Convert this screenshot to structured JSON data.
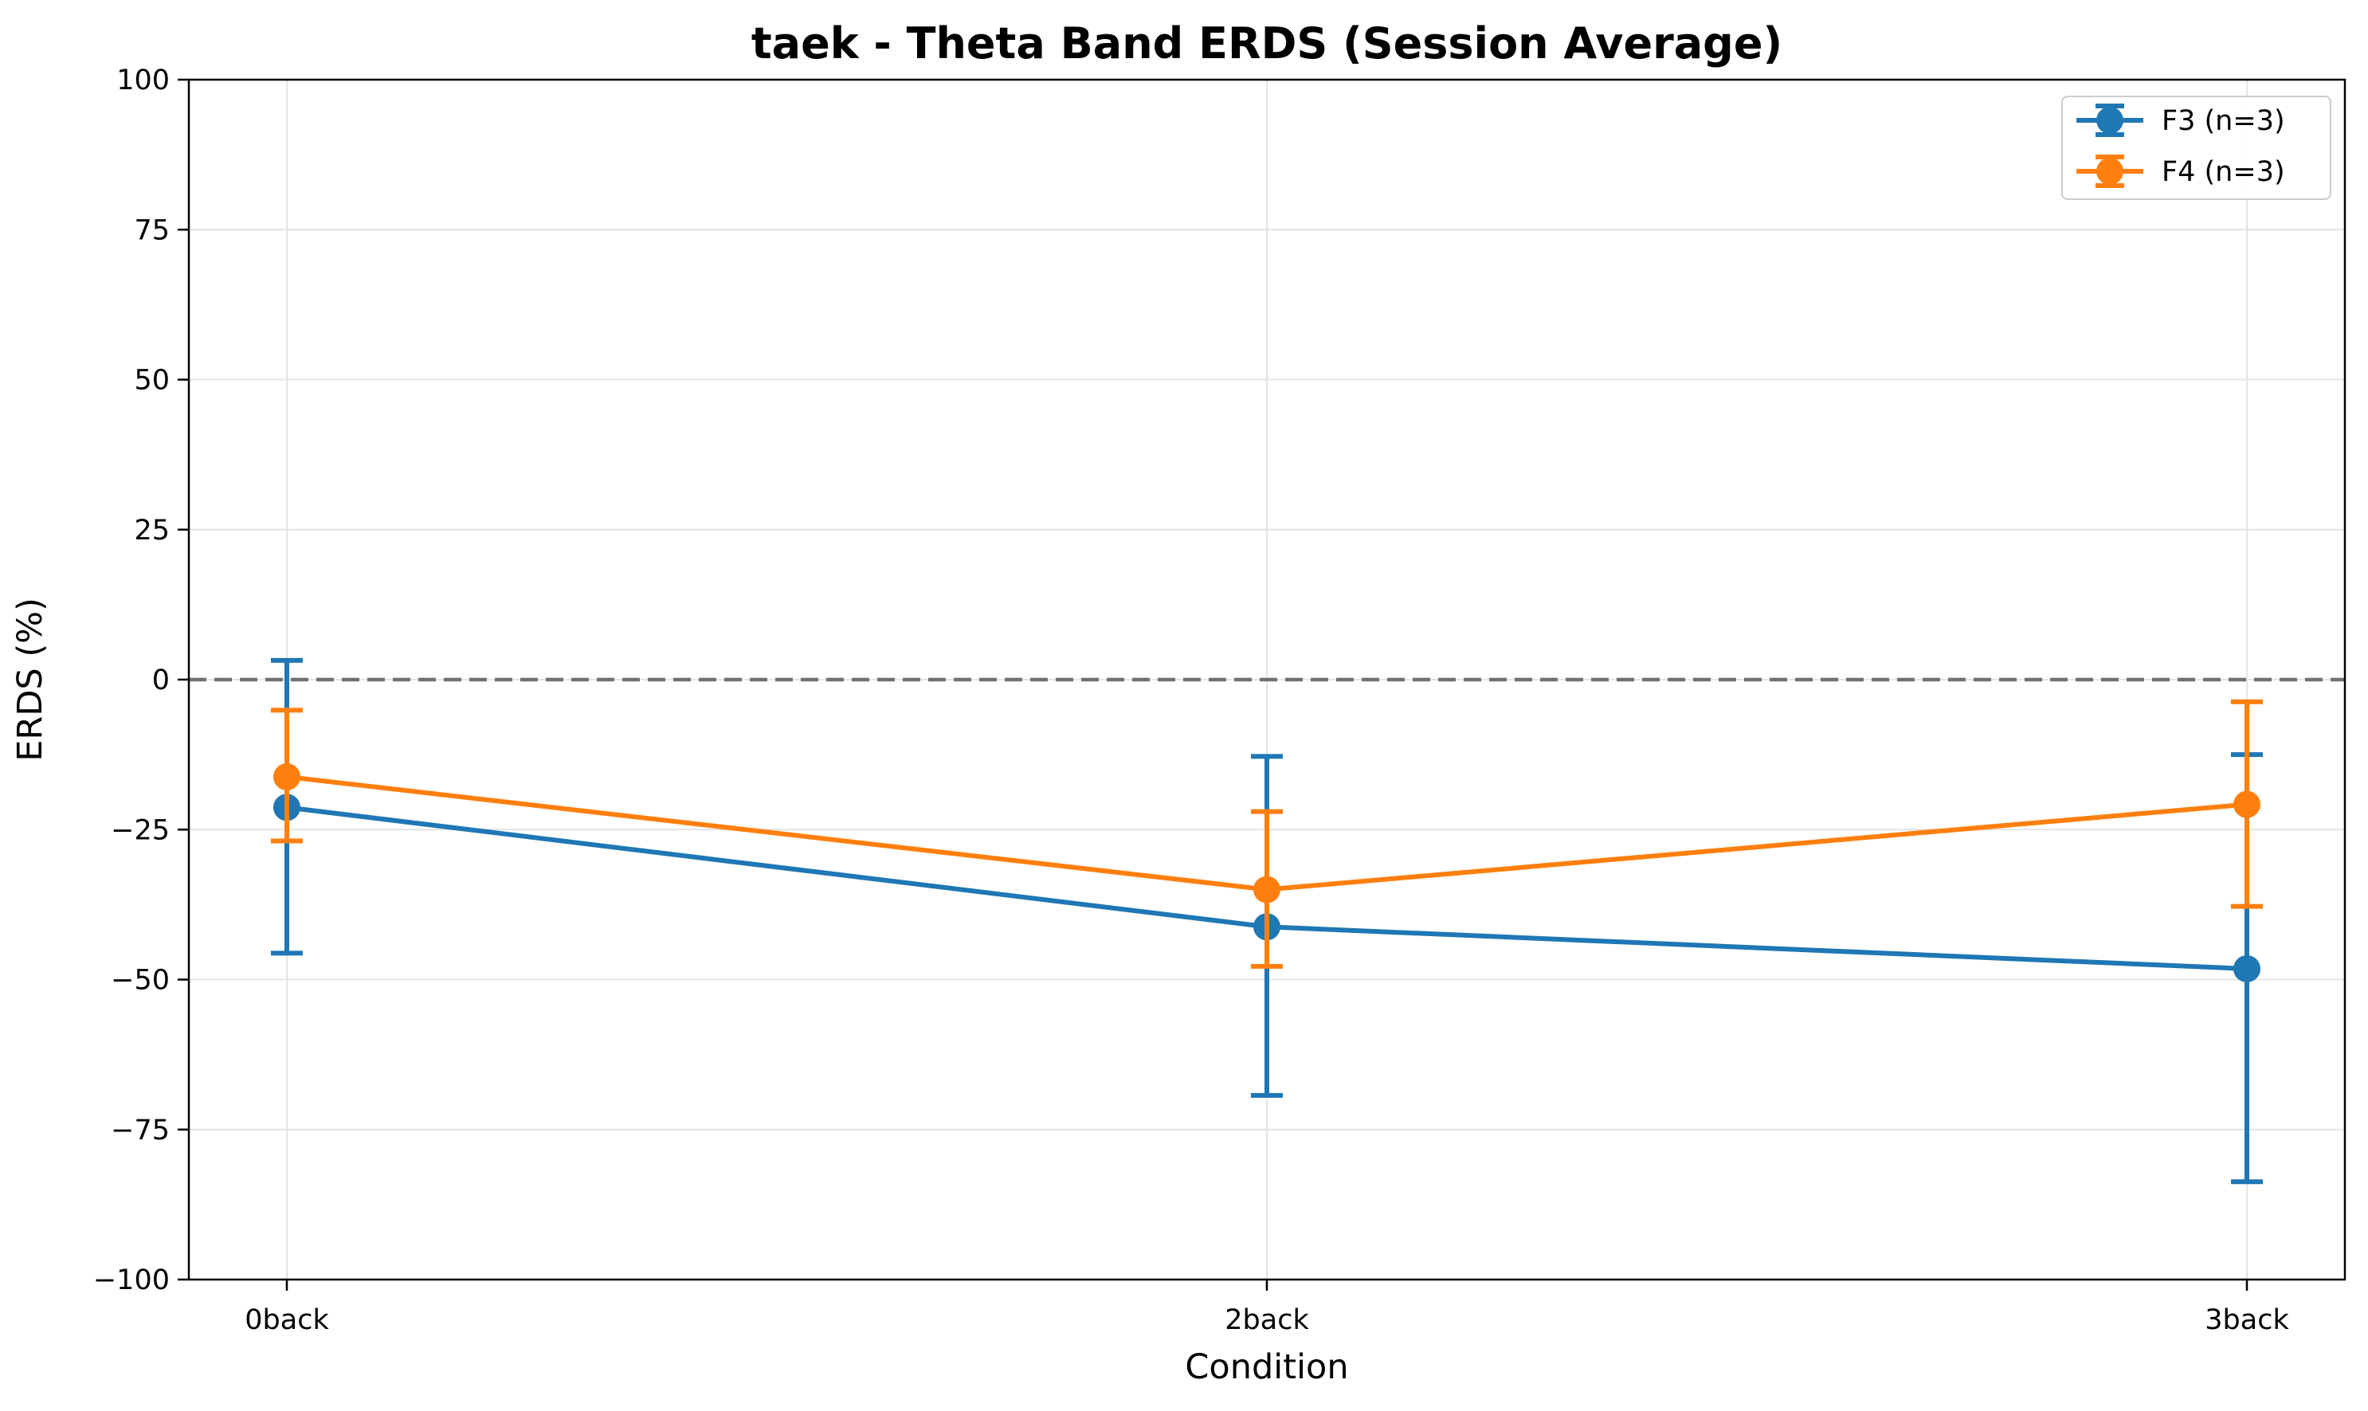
{
  "chart_data": {
    "type": "line",
    "title": "taek - Theta Band ERDS (Session Average)",
    "xlabel": "Condition",
    "ylabel": "ERDS (%)",
    "categories": [
      "0back",
      "2back",
      "3back"
    ],
    "ylim": [
      -100,
      100
    ],
    "yticks": [
      100,
      75,
      50,
      25,
      0,
      -25,
      -50,
      -75,
      -100
    ],
    "ytick_labels": [
      "100",
      "75",
      "50",
      "25",
      "0",
      "−25",
      "−50",
      "−75",
      "−100"
    ],
    "grid": true,
    "reference_line": {
      "y": 0,
      "style": "dashed",
      "color": "#707070"
    },
    "legend_position": "top-right",
    "series": [
      {
        "name": "F3 (n=3)",
        "color": "#1f77b4",
        "values": [
          -21.3,
          -41.2,
          -48.2
        ],
        "err_low": [
          -45.6,
          -69.3,
          -83.7
        ],
        "err_high": [
          3.2,
          -12.8,
          -12.5
        ]
      },
      {
        "name": "F4 (n=3)",
        "color": "#ff7f0e",
        "values": [
          -16.2,
          -35.0,
          -20.8
        ],
        "err_low": [
          -26.9,
          -47.8,
          -37.8
        ],
        "err_high": [
          -5.1,
          -22.0,
          -3.7
        ]
      }
    ]
  }
}
